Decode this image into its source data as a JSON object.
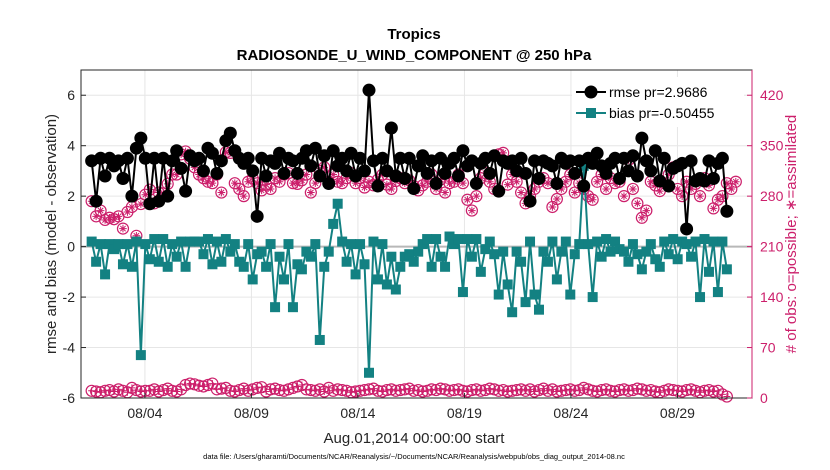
{
  "chart_data": {
    "type": "line",
    "title": "Tropics",
    "subtitle": "RADIOSONDE_U_WIND_COMPONENT @ 250 hPa",
    "xlabel": "Aug.01,2014 00:00:00 start",
    "ylabel": "rmse and bias (model - observation)",
    "y2label": "# of obs: o=possible; ∗=assimilated",
    "footnote": "data file: /Users/gharamti/Documents/NCAR/Reanalysis/~/Documents/NCAR/Reanalysis/webpub/obs_diag_output_2014-08.nc",
    "xlim": [
      0,
      31.5
    ],
    "ylim": [
      -6,
      7
    ],
    "y2lim": [
      0,
      455
    ],
    "x_ticks": [
      3,
      8,
      13,
      18,
      23,
      28
    ],
    "x_tick_labels": [
      "08/04",
      "08/09",
      "08/14",
      "08/19",
      "08/24",
      "08/29"
    ],
    "y_ticks": [
      -6,
      -4,
      -2,
      0,
      2,
      4,
      6
    ],
    "y2_ticks": [
      0,
      70,
      140,
      210,
      280,
      350,
      420
    ],
    "legend": [
      "rmse pr=2.9686",
      "bias pr=-0.50455"
    ],
    "legend_position": "top-right",
    "grid": true,
    "series": [
      {
        "name": "rmse pr=2.9686",
        "axis": "left",
        "color": "#000000",
        "marker": "circle",
        "values": [
          3.4,
          1.8,
          3.5,
          2.8,
          3.5,
          3.2,
          3.4,
          2.7,
          3.5,
          2.0,
          3.9,
          4.3,
          3.5,
          1.7,
          3.5,
          1.8,
          3.5,
          2.0,
          3.4,
          3.8,
          3.1,
          2.2,
          3.6,
          3.4,
          3.5,
          3.0,
          3.9,
          3.7,
          2.9,
          3.4,
          4.2,
          4.5,
          3.8,
          3.5,
          3.3,
          3.5,
          3.0,
          1.2,
          3.5,
          2.8,
          3.4,
          3.3,
          3.7,
          2.9,
          3.5,
          3.4,
          2.9,
          3.5,
          3.8,
          3.2,
          3.9,
          2.8,
          3.6,
          2.5,
          3.8,
          3.2,
          3.5,
          3.0,
          3.7,
          2.8,
          3.5,
          3.0,
          6.2,
          3.4,
          2.4,
          3.5,
          3.0,
          4.7,
          2.8,
          3.5,
          2.7,
          3.5,
          2.3,
          3.2,
          3.6,
          2.9,
          3.4,
          2.5,
          3.5,
          2.9,
          3.3,
          3.5,
          2.8,
          3.8,
          3.2,
          3.4,
          2.5,
          3.3,
          3.5,
          2.9,
          3.6,
          2.2,
          3.4,
          3.3,
          3.4,
          3.0,
          3.5,
          2.9,
          1.8,
          3.4,
          2.7,
          3.4,
          3.3,
          3.2,
          2.5,
          3.5,
          3.3,
          3.4,
          2.9,
          3.4,
          2.4,
          3.5,
          3.3,
          3.7,
          3.2,
          2.9,
          3.3,
          3.5,
          2.7,
          3.5,
          3.0,
          3.6,
          2.8,
          4.3,
          3.4,
          3.0,
          3.8,
          2.6,
          3.5,
          2.4,
          3.1,
          3.2,
          3.3,
          0.7,
          3.4,
          2.6,
          2.7,
          2.6,
          3.4,
          2.7,
          3.3,
          3.5,
          1.4
        ]
      },
      {
        "name": "bias pr=-0.50455",
        "axis": "left",
        "color": "#138182",
        "marker": "square",
        "values": [
          0.2,
          -0.6,
          0.1,
          -1.1,
          0.1,
          -0.1,
          0.1,
          -0.7,
          0.1,
          -0.8,
          0.2,
          -4.3,
          0.1,
          -0.5,
          0.3,
          -0.6,
          0.3,
          -0.8,
          0.1,
          -0.4,
          0.2,
          -0.8,
          0.2,
          0.2,
          0.2,
          -0.3,
          0.3,
          -0.7,
          0.2,
          -0.6,
          0.3,
          -0.2,
          0.1,
          -0.6,
          -0.8,
          0.1,
          -1.3,
          -0.3,
          -0.2,
          -0.8,
          0.1,
          -2.4,
          -0.4,
          -1.3,
          0.1,
          -2.4,
          -0.7,
          -0.9,
          -0.2,
          -0.4,
          0.1,
          -3.7,
          -0.8,
          -0.2,
          0.9,
          1.7,
          0.2,
          -0.6,
          0.1,
          -1.1,
          0.1,
          -0.7,
          -5.0,
          0.2,
          -1.3,
          0.1,
          -1.5,
          -0.4,
          -1.7,
          -0.8,
          -0.4,
          -0.3,
          -0.6,
          -0.2,
          0.1,
          0.3,
          -0.8,
          0.3,
          -0.4,
          -0.8,
          0.4,
          0.1,
          0.3,
          -1.8,
          0.3,
          -0.4,
          0.3,
          -1.0,
          -0.1,
          0.2,
          -0.3,
          -1.9,
          -0.2,
          -1.5,
          -2.6,
          -0.2,
          -0.6,
          -2.2,
          0.2,
          -1.9,
          -2.5,
          -0.2,
          -0.6,
          0.2,
          -1.3,
          -0.2,
          0.2,
          -1.9,
          -0.3,
          0.1,
          3.2,
          0.1,
          -2.0,
          0.2,
          -0.4,
          0.3,
          -0.2,
          0.2,
          -0.1,
          -0.2,
          -0.6,
          0.1,
          -0.3,
          -0.9,
          -0.2,
          0.1,
          -0.5,
          -0.8,
          0.2,
          -0.3,
          0.3,
          -0.5,
          0.2,
          0.1,
          -0.4,
          0.2,
          -2.0,
          0.3,
          -1.0,
          0.2,
          -1.8,
          0.2,
          -0.9
        ]
      },
      {
        "name": "possible obs",
        "axis": "right",
        "color": "#cc1f6b",
        "marker": "o",
        "values": [
          10,
          9,
          8,
          10,
          11,
          9,
          12,
          10,
          8,
          14,
          11,
          9,
          10,
          10,
          12,
          9,
          11,
          13,
          10,
          9,
          12,
          18,
          20,
          19,
          17,
          16,
          18,
          20,
          12,
          13,
          14,
          10,
          9,
          11,
          13,
          10,
          12,
          14,
          15,
          9,
          12,
          13,
          11,
          10,
          12,
          14,
          16,
          18,
          12,
          11,
          10,
          12,
          9,
          14,
          10,
          12,
          11,
          10,
          8,
          9,
          10,
          11,
          12,
          13,
          10,
          9,
          11,
          12,
          10,
          11,
          12,
          13,
          10,
          11,
          9,
          10,
          12,
          11,
          13,
          12,
          10,
          11,
          12,
          10,
          9,
          11,
          12,
          10,
          11,
          13,
          12,
          10,
          11,
          9,
          10,
          11,
          12,
          10,
          12,
          9,
          11,
          13,
          10,
          12,
          9,
          10,
          11,
          12,
          10,
          11,
          14,
          12,
          10,
          9,
          11,
          12,
          10,
          9,
          11,
          12,
          10,
          11,
          13,
          12,
          10,
          11,
          9,
          8,
          10,
          12,
          11,
          10,
          9,
          11,
          12,
          10,
          8,
          10,
          11,
          9,
          10,
          5,
          2
        ]
      },
      {
        "name": "assimilated obs",
        "axis": "right",
        "color": "#cc1f6b",
        "marker": "*",
        "values": [
          273,
          252,
          260,
          247,
          250,
          248,
          252,
          235,
          258,
          265,
          225,
          269,
          282,
          289,
          270,
          285,
          284,
          297,
          310,
          310,
          338,
          342,
          332,
          320,
          310,
          305,
          300,
          298,
          310,
          285,
          341,
          340,
          298,
          290,
          280,
          300,
          305,
          298,
          288,
          296,
          290,
          305,
          300,
          310,
          312,
          298,
          297,
          302,
          310,
          285,
          298,
          315,
          320,
          300,
          310,
          300,
          298,
          305,
          312,
          298,
          305,
          292,
          300,
          295,
          303,
          310,
          296,
          290,
          301,
          305,
          298,
          302,
          294,
          288,
          295,
          300,
          310,
          290,
          303,
          285,
          298,
          300,
          310,
          298,
          275,
          260,
          280,
          305,
          312,
          300,
          290,
          338,
          340,
          296,
          310,
          300,
          285,
          270,
          280,
          290,
          300,
          305,
          298,
          265,
          276,
          290,
          300,
          310,
          285,
          298,
          290,
          280,
          275,
          300,
          310,
          290,
          305,
          298,
          300,
          280,
          330,
          290,
          270,
          250,
          260,
          300,
          295,
          287,
          298,
          310,
          320,
          290,
          280,
          300,
          290,
          297,
          280,
          305,
          295,
          263,
          275,
          280,
          298,
          290,
          300
        ]
      }
    ]
  }
}
